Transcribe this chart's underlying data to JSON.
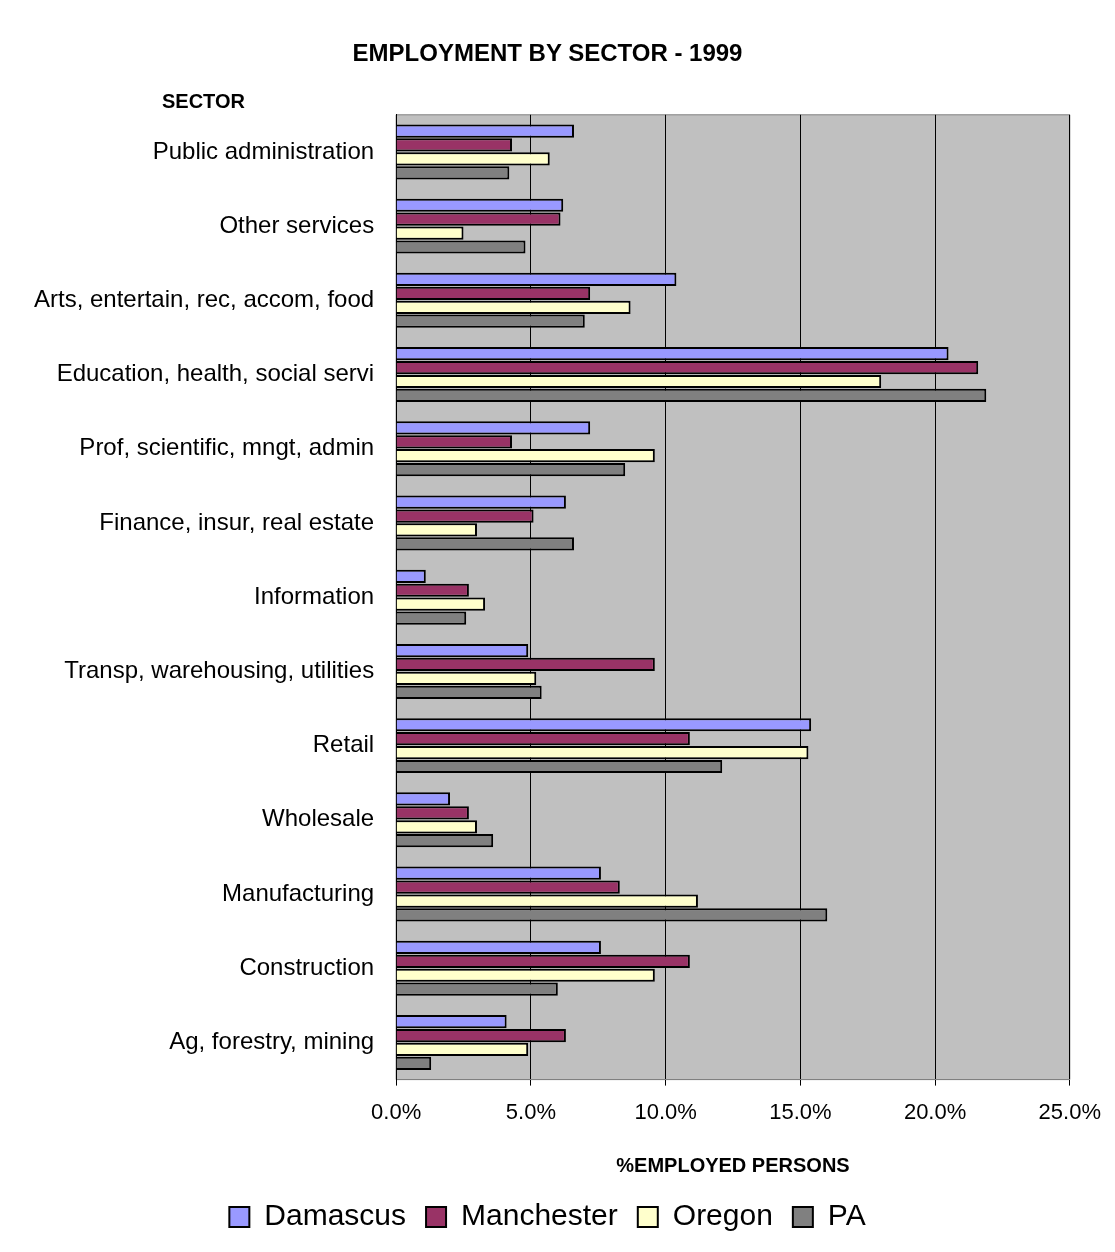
{
  "chart_data": {
    "type": "bar",
    "orientation": "horizontal",
    "title": "EMPLOYMENT BY SECTOR - 1999",
    "xlabel": "%EMPLOYED PERSONS",
    "ylabel": "SECTOR",
    "categories": [
      "Public administration",
      "Other services",
      "Arts, entertain, rec, accom, food",
      "Education, health, social servi",
      "Prof, scientific, mngt, admin",
      "Finance, insur, real estate",
      "Information",
      "Transp, warehousing, utilities",
      "Retail",
      "Wholesale",
      "Manufacturing",
      "Construction",
      "Ag, forestry, mining"
    ],
    "series": [
      {
        "name": "Damascus",
        "color": "#9999ff",
        "values": [
          6.6,
          6.2,
          10.4,
          20.5,
          7.2,
          6.3,
          1.1,
          4.9,
          15.4,
          2.0,
          7.6,
          7.6,
          4.1
        ]
      },
      {
        "name": "Manchester",
        "color": "#993366",
        "values": [
          4.3,
          6.1,
          7.2,
          21.6,
          4.3,
          5.1,
          2.7,
          9.6,
          10.9,
          2.7,
          8.3,
          10.9,
          6.3
        ]
      },
      {
        "name": "Oregon",
        "color": "#ffffcc",
        "values": [
          5.7,
          2.5,
          8.7,
          18.0,
          9.6,
          3.0,
          3.3,
          5.2,
          15.3,
          3.0,
          11.2,
          9.6,
          4.9
        ]
      },
      {
        "name": "PA",
        "color": "#808080",
        "values": [
          4.2,
          4.8,
          7.0,
          21.9,
          8.5,
          6.6,
          2.6,
          5.4,
          12.1,
          3.6,
          16.0,
          6.0,
          1.3
        ]
      }
    ],
    "xlim": [
      0,
      25
    ],
    "xticks": [
      {
        "value": 0,
        "label": "0.0%"
      },
      {
        "value": 5,
        "label": "5.0%"
      },
      {
        "value": 10,
        "label": "10.0%"
      },
      {
        "value": 15,
        "label": "15.0%"
      },
      {
        "value": 20,
        "label": "20.0%"
      },
      {
        "value": 25,
        "label": "25.0%"
      }
    ],
    "grid": "x",
    "legend": "bottom"
  }
}
